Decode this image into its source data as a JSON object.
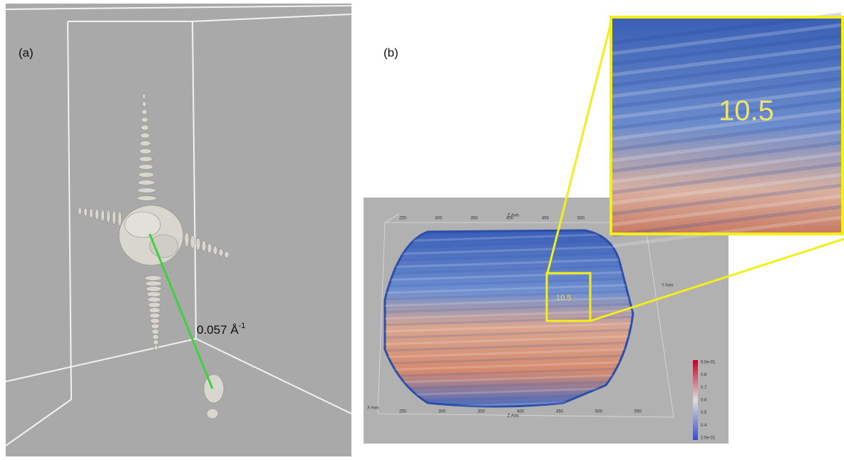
{
  "panels": [
    {
      "label": "(a)",
      "annotation": {
        "text": "0.057 Å",
        "superscript": "-1"
      }
    },
    {
      "label": "(b)",
      "marker": "10.5",
      "inset_marker": "10.5",
      "axes": {
        "z_label": "Z Axis",
        "y_label": "Y Axis",
        "x_label": "X Axis",
        "top_ticks": [
          "250",
          "300",
          "350",
          "400",
          "450",
          "500"
        ],
        "bottom_ticks": [
          "250",
          "300",
          "350",
          "400",
          "450",
          "500",
          "550"
        ]
      },
      "colorbar": {
        "ticks": [
          "9.0e-01",
          "0.8",
          "0.7",
          "0.6",
          "0.5",
          "0.4",
          "2.5e-01"
        ]
      }
    }
  ]
}
